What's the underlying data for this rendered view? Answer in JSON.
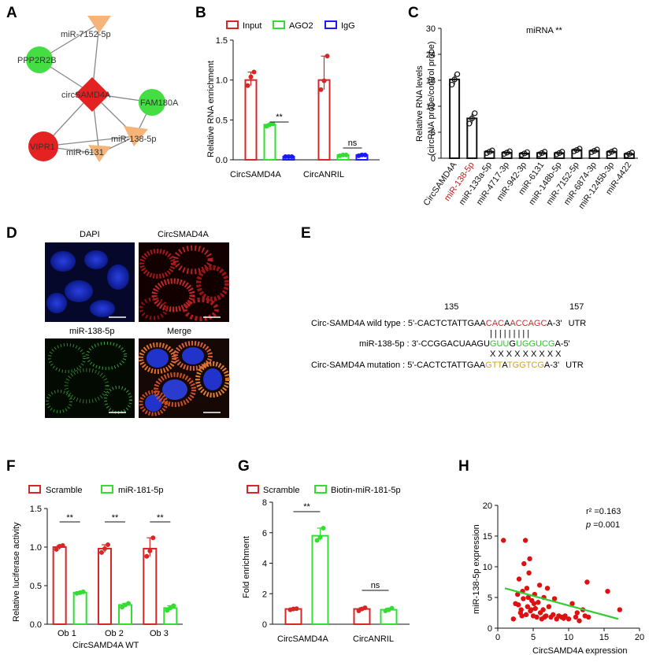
{
  "figure": {
    "panel_letters": [
      "A",
      "B",
      "C",
      "D",
      "E",
      "F",
      "G",
      "H"
    ]
  },
  "panel_a": {
    "nodes": [
      {
        "id": "mir7152",
        "label": "miR-7152-5p",
        "kind": "mirna",
        "color": "#f5b57a"
      },
      {
        "id": "ppp2r2b",
        "label": "PPP2R2B",
        "kind": "gene",
        "color": "#44dd44"
      },
      {
        "id": "circ",
        "label": "circSAMD4A",
        "kind": "circ",
        "color": "#e52222"
      },
      {
        "id": "fam180a",
        "label": "FAM180A",
        "kind": "gene",
        "color": "#44dd44"
      },
      {
        "id": "vipr1",
        "label": "VIPR1",
        "kind": "gene-red",
        "color": "#e52222"
      },
      {
        "id": "mir138",
        "label": "miR-138-5p",
        "kind": "mirna",
        "color": "#f5b57a"
      },
      {
        "id": "mir6131",
        "label": "miR-6131",
        "kind": "mirna",
        "color": "#f5b57a"
      }
    ]
  },
  "chart_data": [
    {
      "panel": "B",
      "type": "bar",
      "categories": [
        "CircSAMD4A",
        "CircANRIL"
      ],
      "series": [
        {
          "name": "Input",
          "color": "#d62728",
          "values": [
            1.0,
            1.0
          ],
          "points": [
            [
              0.93,
              1.04,
              1.1
            ],
            [
              0.88,
              0.99,
              1.3
            ]
          ]
        },
        {
          "name": "AGO2",
          "color": "#33dd33",
          "values": [
            0.44,
            0.06
          ],
          "points": [
            [
              0.42,
              0.44,
              0.45
            ],
            [
              0.05,
              0.06,
              0.06
            ]
          ]
        },
        {
          "name": "IgG",
          "color": "#1a1aff",
          "values": [
            0.04,
            0.06
          ],
          "points": [
            [
              0.04,
              0.04,
              0.04
            ],
            [
              0.05,
              0.06,
              0.06
            ]
          ]
        }
      ],
      "ylabel": "Relative RNA enrichment",
      "ylim": [
        0,
        1.5
      ],
      "yticks": [
        "0.0",
        "0.5",
        "1.0",
        "1.5"
      ],
      "annotations": [
        "**",
        "ns"
      ]
    },
    {
      "panel": "C",
      "type": "bar",
      "title": "miRNA **",
      "categories": [
        "CircSAMD4A",
        "miR-138-5p",
        "miR-133a-5p",
        "miR-4717-3p",
        "miR-942-3p",
        "miR-6131",
        "miR-148b-5p",
        "miR-7152-5p",
        "miR-6874-3p",
        "miR-1245b-3p",
        "miR-4422"
      ],
      "values": [
        18.2,
        9.2,
        1.5,
        1.3,
        1.1,
        1.2,
        1.2,
        1.9,
        1.7,
        1.5,
        1.0
      ],
      "highlight": "miR-138-5p",
      "ylabel": "Relative RNA levels\n(circRNA probe/control probe)",
      "ylabel_lines": [
        "Relative RNA levels",
        "(circRNA probe/control probe)"
      ],
      "ylim": [
        0,
        30
      ],
      "yticks": [
        "0",
        "6",
        "12",
        "18",
        "24",
        "30"
      ]
    },
    {
      "panel": "F",
      "type": "bar",
      "categories": [
        "Ob 1",
        "Ob 2",
        "Ob 3"
      ],
      "xlabel": "CircSAMD4A WT",
      "series": [
        {
          "name": "Scramble",
          "color": "#d62728",
          "values": [
            1.0,
            0.98,
            0.98
          ],
          "points": [
            [
              0.97,
              1.01,
              1.02
            ],
            [
              0.93,
              0.98,
              1.03
            ],
            [
              0.88,
              0.95,
              1.12
            ]
          ]
        },
        {
          "name": "miR-181-5p",
          "color": "#33dd33",
          "values": [
            0.41,
            0.25,
            0.21
          ],
          "points": [
            [
              0.4,
              0.41,
              0.42
            ],
            [
              0.22,
              0.25,
              0.27
            ],
            [
              0.18,
              0.21,
              0.24
            ]
          ]
        }
      ],
      "ylabel": "Relative luciferase activity",
      "ylim": [
        0,
        1.5
      ],
      "yticks": [
        "0.0",
        "0.5",
        "1.0",
        "1.5"
      ],
      "annotations": [
        "**",
        "**",
        "**"
      ]
    },
    {
      "panel": "G",
      "type": "bar",
      "categories": [
        "CircSAMD4A",
        "CircANRIL"
      ],
      "series": [
        {
          "name": "Scramble",
          "color": "#d62728",
          "values": [
            1.0,
            1.0
          ],
          "points": [
            [
              0.95,
              1.0,
              1.02
            ],
            [
              0.88,
              1.0,
              1.08
            ]
          ]
        },
        {
          "name": "Biotin-miR-181-5p",
          "color": "#33dd33",
          "values": [
            5.8,
            0.95
          ],
          "points": [
            [
              5.5,
              5.7,
              6.3
            ],
            [
              0.88,
              0.95,
              1.05
            ]
          ]
        }
      ],
      "ylabel": "Fold enrichment",
      "ylim": [
        0,
        8
      ],
      "yticks": [
        "0",
        "2",
        "4",
        "6",
        "8"
      ],
      "annotations": [
        "**",
        "ns"
      ]
    },
    {
      "panel": "H",
      "type": "scatter",
      "xlabel": "CircSAMD4A expression",
      "ylabel": "miR-138-5p expression",
      "xlim": [
        0,
        20
      ],
      "ylim": [
        0,
        20
      ],
      "xticks": [
        "0",
        "5",
        "10",
        "15",
        "20"
      ],
      "yticks": [
        "0",
        "5",
        "10",
        "15",
        "20"
      ],
      "stat_r2": "r² =0.163",
      "stat_p_label": "p",
      "stat_p_value": " =0.001",
      "fit_line": {
        "x": [
          1,
          17
        ],
        "y": [
          6.5,
          1.5
        ],
        "color": "#33cc33"
      },
      "point_color": "#dd1111",
      "points": [
        [
          0.8,
          14.3
        ],
        [
          2.2,
          1.5
        ],
        [
          2.5,
          4.0
        ],
        [
          2.8,
          5.5
        ],
        [
          3.0,
          8.0
        ],
        [
          3.2,
          2.5
        ],
        [
          3.3,
          3.0
        ],
        [
          3.5,
          6.0
        ],
        [
          3.7,
          10.5
        ],
        [
          3.9,
          14.3
        ],
        [
          4.0,
          2.2
        ],
        [
          4.2,
          3.5
        ],
        [
          4.3,
          5.0
        ],
        [
          4.4,
          9.0
        ],
        [
          4.5,
          11.3
        ],
        [
          4.6,
          2.8
        ],
        [
          4.8,
          4.5
        ],
        [
          5.0,
          2.0
        ],
        [
          5.2,
          5.5
        ],
        [
          5.3,
          3.2
        ],
        [
          5.5,
          1.8
        ],
        [
          5.7,
          4.2
        ],
        [
          5.9,
          7.0
        ],
        [
          6.0,
          2.5
        ],
        [
          6.2,
          1.5
        ],
        [
          6.4,
          3.0
        ],
        [
          6.5,
          5.0
        ],
        [
          6.8,
          2.0
        ],
        [
          7.0,
          6.5
        ],
        [
          7.2,
          3.5
        ],
        [
          7.5,
          1.8
        ],
        [
          7.8,
          2.2
        ],
        [
          8.0,
          4.8
        ],
        [
          8.3,
          1.5
        ],
        [
          8.6,
          2.0
        ],
        [
          9.0,
          1.8
        ],
        [
          9.3,
          1.6
        ],
        [
          9.5,
          2.0
        ],
        [
          10.0,
          1.5
        ],
        [
          10.5,
          4.0
        ],
        [
          11.0,
          1.8
        ],
        [
          11.2,
          2.5
        ],
        [
          11.5,
          1.2
        ],
        [
          12.0,
          3.0
        ],
        [
          12.3,
          2.0
        ],
        [
          12.6,
          7.5
        ],
        [
          12.8,
          1.8
        ],
        [
          15.5,
          6.0
        ],
        [
          17.2,
          3.0
        ],
        [
          4.1,
          6.5
        ],
        [
          3.6,
          4.8
        ],
        [
          2.9,
          3.8
        ],
        [
          5.1,
          4.0
        ],
        [
          4.7,
          3.0
        ],
        [
          6.6,
          1.8
        ],
        [
          3.4,
          2.0
        ]
      ]
    }
  ],
  "panel_b": {
    "legend": [
      "Input",
      "AGO2",
      "IgG"
    ],
    "xcats": [
      "CircSAMD4A",
      "CircANRIL"
    ],
    "ylabel": "Relative RNA enrichment"
  },
  "panel_d": {
    "titles": [
      "DAPI",
      "CircSMAD4A",
      "miR-138-5p",
      "Merge"
    ]
  },
  "panel_e": {
    "pos_start": "135",
    "pos_end": "157",
    "row1_label": "Circ-SAMD4A wild type : ",
    "row1_pre": "5'-CACTCTATTGAA",
    "row1_red1": "CAC",
    "row1_mid": "A",
    "row1_red2": "ACCAGC",
    "row1_post": "A-3'",
    "row1_utr": "UTR",
    "pipes": "|  |  |    |  |  |  |  |  |",
    "row2_label": "miR-138-5p : ",
    "row2_pre": "3'-CCGGACUAAGU",
    "row2_g1": "GUU",
    "row2_mid": "G",
    "row2_g2": "UGGUCG",
    "row2_post": "A-5'",
    "xs": "X  X  X    X  X  X  X  X  X",
    "row3_label": "Circ-SAMD4A mutation : ",
    "row3_pre": "5'-CACTCTATTGAA",
    "row3_o1": "GTT",
    "row3_mid": "A",
    "row3_o2": "TGGTCG",
    "row3_post": "A-3'",
    "row3_utr": "UTR"
  },
  "panel_f": {
    "legend": [
      "Scramble",
      "miR-181-5p"
    ],
    "xcats": [
      "Ob 1",
      "Ob 2",
      "Ob 3"
    ],
    "xlabel": "CircSAMD4A WT",
    "ylabel": "Relative luciferase activity"
  },
  "panel_g": {
    "legend": [
      "Scramble",
      "Biotin-miR-181-5p"
    ],
    "xcats": [
      "CircSAMD4A",
      "CircANRIL"
    ],
    "ylabel": "Fold enrichment"
  },
  "panel_h": {
    "xlabel": "CircSAMD4A expression",
    "ylabel": "miR-138-5p expression"
  },
  "colors": {
    "red": "#d62728",
    "green": "#33dd33",
    "blue": "#1a1aff",
    "orange": "#d4a017",
    "mirna": "#f5b57a"
  }
}
